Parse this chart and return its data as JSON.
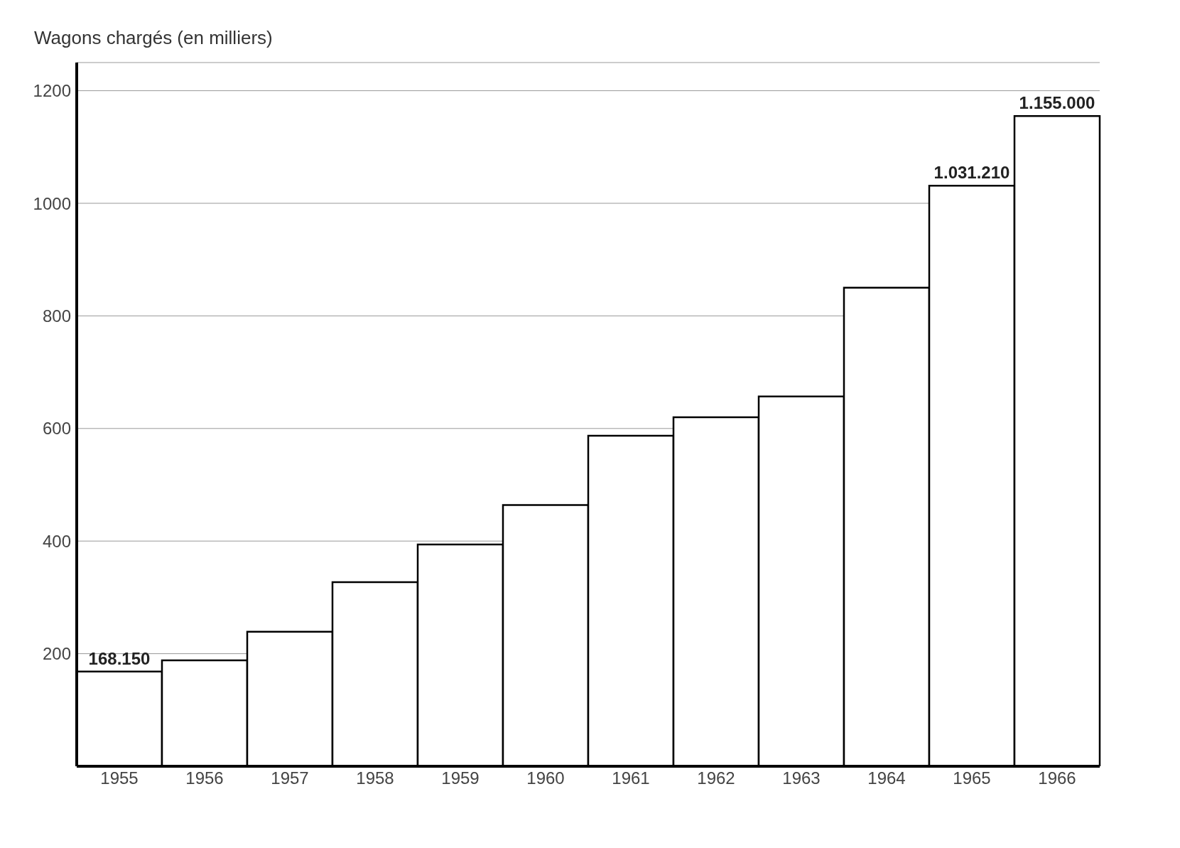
{
  "chart_data": {
    "type": "bar",
    "ylabel": "Wagons chargés (en milliers)",
    "categories": [
      "1955",
      "1956",
      "1957",
      "1958",
      "1959",
      "1960",
      "1961",
      "1962",
      "1963",
      "1964",
      "1965",
      "1966"
    ],
    "values": [
      168.15,
      188,
      239,
      327,
      394,
      464,
      587,
      620,
      657,
      850,
      1031.21,
      1155
    ],
    "annotations": [
      {
        "text": "168.150",
        "x": "1955",
        "y": 168.15
      },
      {
        "text": "1.031.210",
        "x": "1965",
        "y": 1031.21
      },
      {
        "text": "1.155.000",
        "x": "1966",
        "y": 1155
      }
    ],
    "color": "#ffffff",
    "ylim": [
      0,
      1250
    ],
    "yticks": [
      200,
      400,
      600,
      800,
      1000,
      1200
    ],
    "grid": "y"
  }
}
